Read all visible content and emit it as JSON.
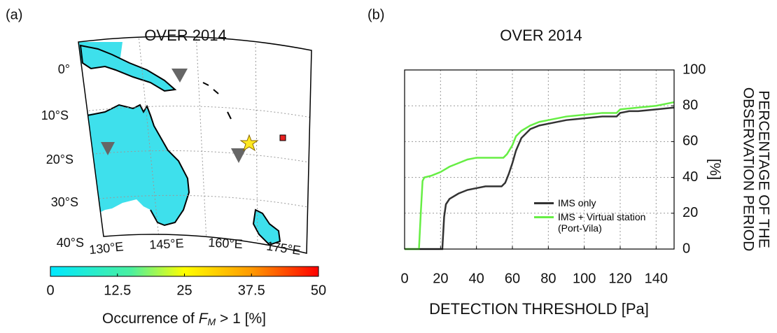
{
  "chart_data": [
    {
      "type": "map",
      "panel": "(a)",
      "title": "OVER 2014",
      "lat_labels": [
        "0°",
        "10°S",
        "20°S",
        "30°S",
        "40°S"
      ],
      "lon_labels": [
        "130°E",
        "145°E",
        "160°E",
        "175°E"
      ],
      "clim": [
        0,
        50
      ],
      "cticks": [
        0,
        12.5,
        25,
        37.5,
        50
      ],
      "colorbar_label": [
        "Occurrence of ",
        "F",
        "M",
        " > 1 [%]"
      ]
    },
    {
      "type": "line",
      "panel": "(b)",
      "title": "OVER 2014",
      "xlabel": "DETECTION THRESHOLD [Pa]",
      "ylabel": [
        "PERCENTAGE OF THE",
        "OBSERVATION PERIOD",
        "[%]"
      ],
      "xlim": [
        0,
        150
      ],
      "xticks": [
        0,
        20,
        40,
        60,
        80,
        100,
        120,
        140
      ],
      "ylim": [
        0,
        100
      ],
      "yticks": [
        0,
        20,
        40,
        60,
        80,
        100
      ],
      "grid": true,
      "legend": "lower right",
      "series": [
        {
          "name": "IMS only",
          "color": "#333333",
          "x": [
            0,
            20,
            21,
            22,
            23,
            25,
            30,
            35,
            40,
            45,
            50,
            54,
            56,
            58,
            60,
            62,
            65,
            70,
            75,
            80,
            90,
            100,
            110,
            118,
            120,
            125,
            130,
            140,
            150
          ],
          "values": [
            0,
            0,
            0,
            18,
            25,
            28,
            31,
            33,
            34,
            35,
            35,
            35,
            37,
            42,
            48,
            55,
            62,
            67,
            69,
            70,
            72,
            73,
            74,
            74,
            76,
            77,
            77,
            78,
            79
          ]
        },
        {
          "name": "IMS + Virtual station (Port-Vila)",
          "color": "#66ee44",
          "x": [
            0,
            8,
            9,
            10,
            11,
            15,
            20,
            25,
            30,
            35,
            40,
            50,
            55,
            57,
            60,
            62,
            65,
            70,
            75,
            80,
            90,
            100,
            110,
            118,
            120,
            130,
            140,
            150
          ],
          "values": [
            0,
            0,
            20,
            38,
            40,
            41,
            43,
            46,
            48,
            50,
            51,
            51,
            51,
            53,
            58,
            63,
            66,
            69,
            71,
            72,
            74,
            75,
            76,
            76,
            78,
            79,
            80,
            82
          ]
        }
      ]
    }
  ]
}
